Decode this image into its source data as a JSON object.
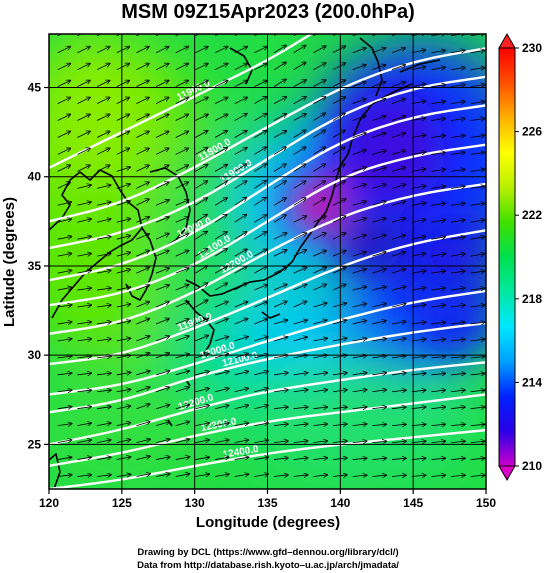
{
  "chart_data": {
    "type": "heatmap",
    "title": "MSM 09Z15Apr2023 (200.0hPa)",
    "xlabel": "Longitude (degrees)",
    "ylabel": "Latitude  (degrees)",
    "xlim": [
      120,
      150
    ],
    "ylim": [
      22.5,
      48
    ],
    "x_ticks": [
      "120",
      "125",
      "130",
      "135",
      "140",
      "145",
      "150"
    ],
    "y_ticks": [
      "25",
      "30",
      "35",
      "40",
      "45"
    ],
    "grid": true,
    "colorbar": {
      "min": 210,
      "max": 230,
      "ticks": [
        "210",
        "214",
        "218",
        "222",
        "226",
        "230"
      ],
      "colors": [
        "#cc00cc",
        "#2a00e6",
        "#0022ff",
        "#00a0ff",
        "#00e8ff",
        "#00e8a0",
        "#00e050",
        "#40e000",
        "#b8f000",
        "#ffff00",
        "#ffb000",
        "#ff5000",
        "#ff0000"
      ]
    },
    "contours": [
      {
        "label": "11900.0",
        "lats": [
          40.5,
          42.5,
          44.5,
          46.5,
          48.0
        ],
        "lons": [
          120,
          125,
          130,
          135,
          138
        ]
      },
      {
        "label": "11800.0",
        "lats": [
          37.5,
          38.5,
          40.5,
          42.8,
          45.0,
          46.5,
          47.2
        ],
        "lons": [
          120,
          125,
          130,
          135,
          140,
          145,
          150
        ]
      },
      {
        "label": "11900.0",
        "lats": [
          36.0,
          36.8,
          38.5,
          41.0,
          43.5,
          45.0,
          45.6
        ],
        "lons": [
          120,
          125,
          130,
          135,
          140,
          145,
          150
        ]
      },
      {
        "label": "12000.0",
        "lats": [
          34.2,
          35.0,
          36.8,
          39.5,
          42.0,
          43.4,
          44.0
        ],
        "lons": [
          120,
          125,
          130,
          135,
          140,
          145,
          150
        ]
      },
      {
        "label": "12100.0",
        "lats": [
          32.8,
          33.4,
          35.0,
          37.5,
          40.0,
          41.2,
          41.8
        ],
        "lons": [
          120,
          125,
          130,
          135,
          140,
          145,
          150
        ]
      },
      {
        "label": "12200.0",
        "lats": [
          31.2,
          31.8,
          33.5,
          35.8,
          37.8,
          39.0,
          39.6
        ],
        "lons": [
          120,
          125,
          130,
          135,
          140,
          145,
          150
        ]
      },
      {
        "label": "11900.0",
        "lats": [
          29.5,
          30.0,
          31.5,
          33.2,
          35.0,
          36.3,
          37.0
        ],
        "lons": [
          120,
          125,
          130,
          135,
          140,
          145,
          150
        ]
      },
      {
        "label": "12000.0",
        "lats": [
          27.8,
          28.3,
          29.5,
          30.8,
          32.0,
          33.0,
          33.6
        ],
        "lons": [
          120,
          125,
          130,
          135,
          140,
          145,
          150
        ]
      },
      {
        "label": "12100.0",
        "lats": [
          26.8,
          27.4,
          28.8,
          29.8,
          30.6,
          31.3,
          31.8
        ],
        "lons": [
          120,
          125,
          130,
          135,
          140,
          145,
          150
        ]
      },
      {
        "label": "12200.0",
        "lats": [
          25.0,
          25.8,
          27.0,
          28.0,
          28.6,
          29.2,
          29.6
        ],
        "lons": [
          120,
          125,
          130,
          135,
          140,
          145,
          150
        ]
      },
      {
        "label": "12300.0",
        "lats": [
          23.8,
          24.5,
          25.5,
          26.3,
          26.8,
          27.3,
          27.8
        ],
        "lons": [
          120,
          125,
          130,
          135,
          140,
          145,
          150
        ]
      },
      {
        "label": "12400.0",
        "lats": [
          22.5,
          23.0,
          23.8,
          24.5,
          25.0,
          25.4,
          25.8
        ],
        "lons": [
          120,
          125,
          130,
          135,
          140,
          145,
          150
        ]
      }
    ]
  },
  "credits": {
    "line1": "Drawing by DCL (https://www.gfd–dennou.org/library/dcl/)",
    "line2": "Data from http://database.rish.kyoto–u.ac.jp/arch/jmadata/"
  }
}
